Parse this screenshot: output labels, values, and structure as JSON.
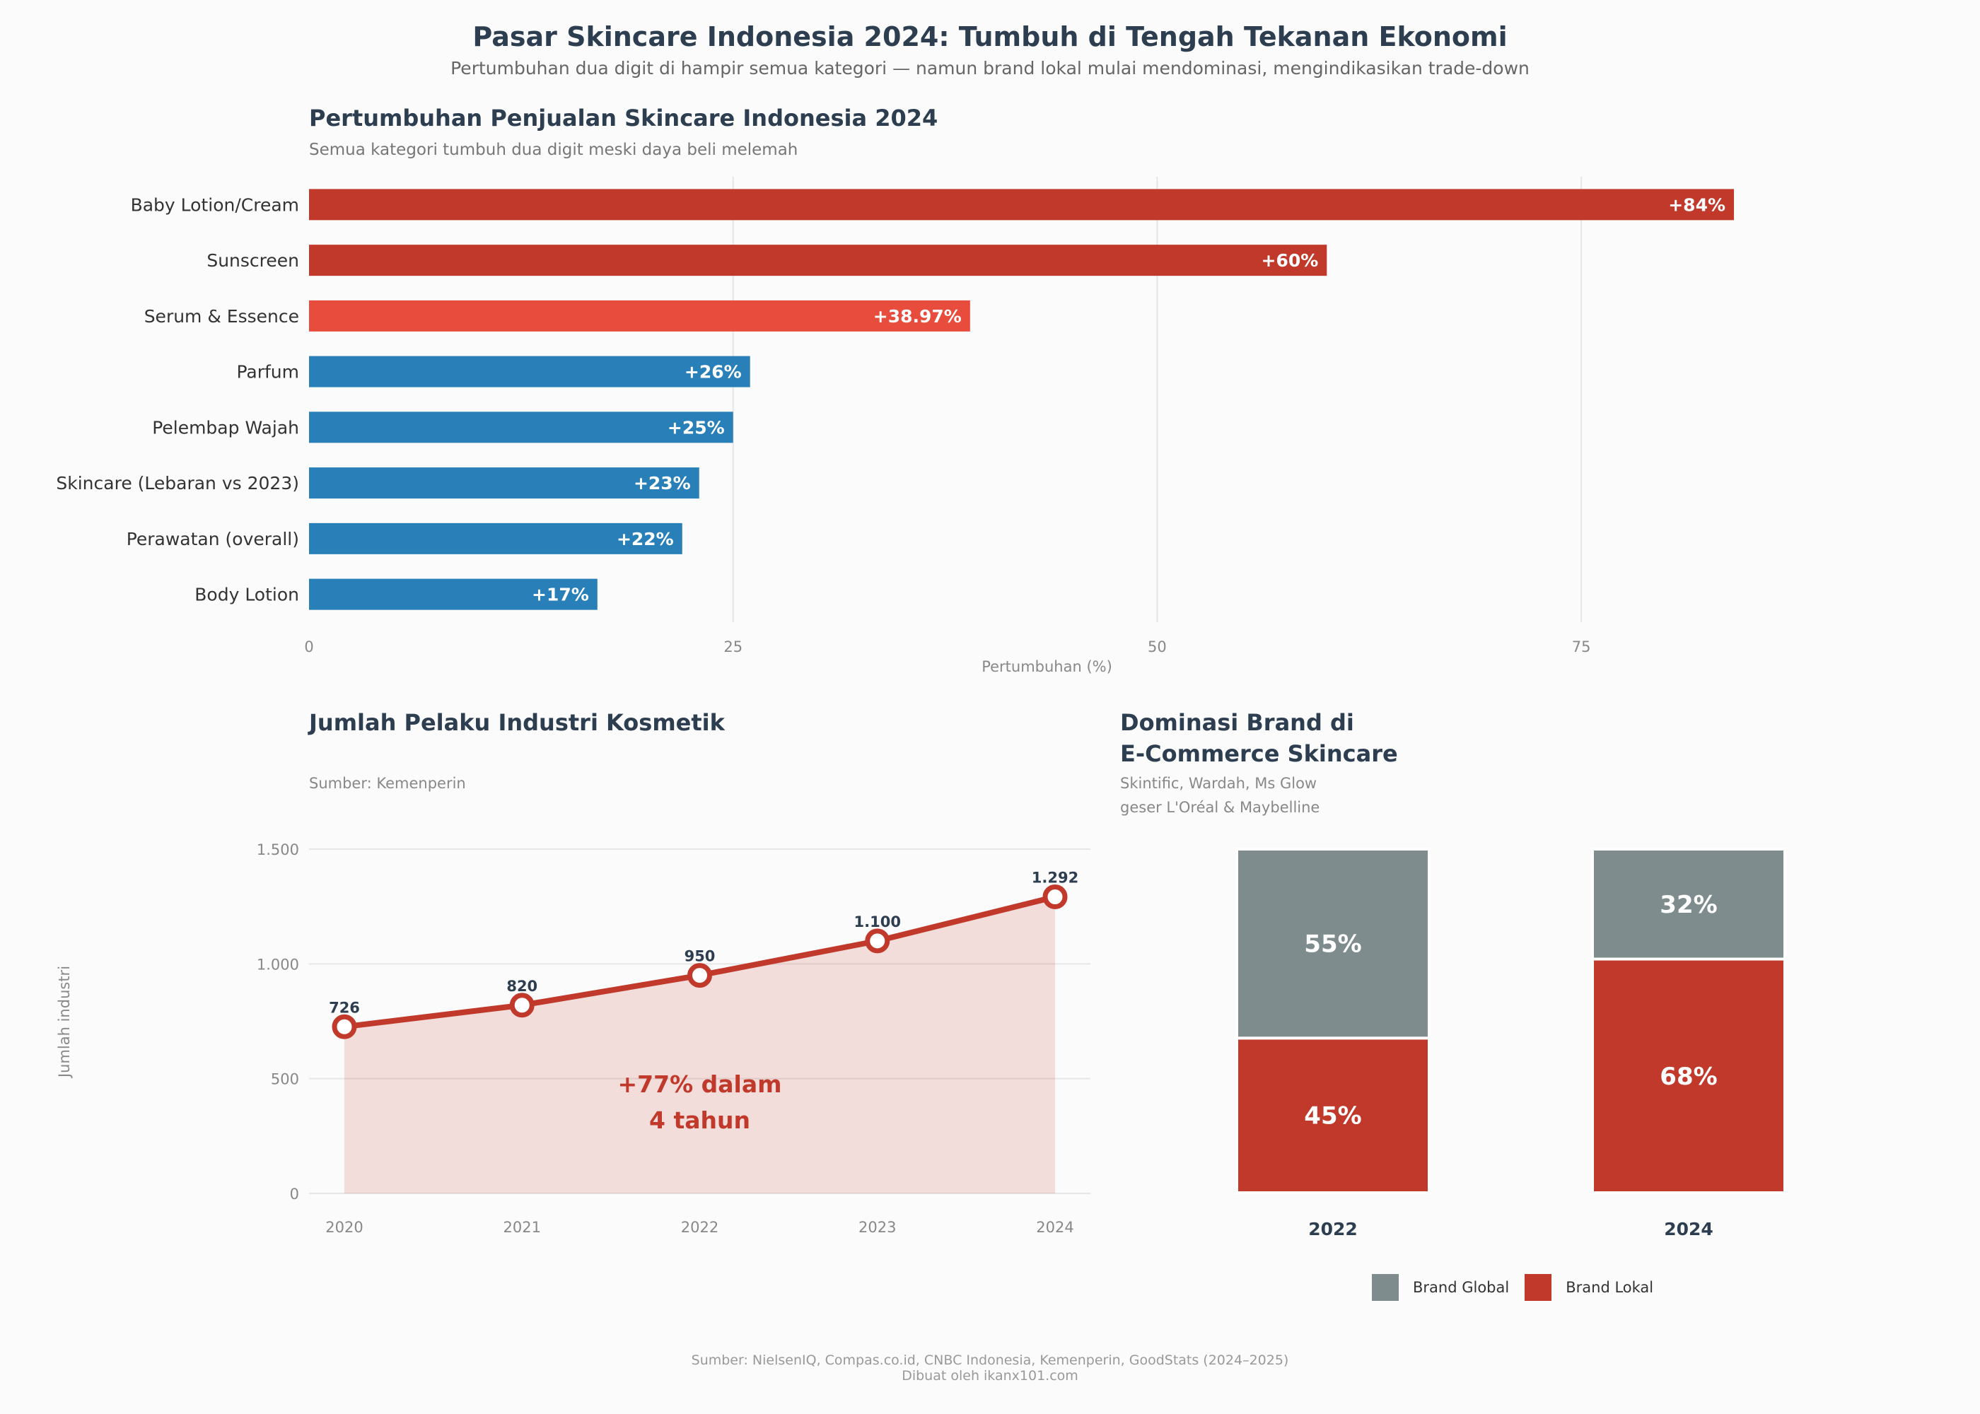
{
  "header": {
    "title": "Pasar Skincare Indonesia 2024: Tumbuh di Tengah Tekanan Ekonomi",
    "subtitle": "Pertumbuhan dua digit di hampir semua kategori — namun brand lokal mulai mendominasi, mengindikasikan trade-down"
  },
  "footer": {
    "source": "Sumber: NielsenIQ, Compas.co.id, CNBC Indonesia, Kemenperin, GoodStats (2024–2025)",
    "credit": "Dibuat oleh ikanx101.com"
  },
  "colors": {
    "dark_red": "#c0392b",
    "red": "#e74c3c",
    "blue": "#2980b9",
    "gray": "#7f8c8d"
  },
  "chart_data": [
    {
      "type": "bar",
      "orientation": "horizontal",
      "title": "Pertumbuhan Penjualan Skincare Indonesia 2024",
      "subtitle": "Semua kategori tumbuh dua digit meski daya beli melemah",
      "xlabel": "Pertumbuhan (%)",
      "xlim": [
        0,
        87
      ],
      "xticks": [
        0,
        25,
        50,
        75
      ],
      "categories": [
        "Baby Lotion/Cream",
        "Sunscreen",
        "Serum & Essence",
        "Parfum",
        "Pelembap Wajah",
        "Skincare (Lebaran vs 2023)",
        "Perawatan (overall)",
        "Body Lotion"
      ],
      "values": [
        84,
        60,
        38.97,
        26,
        25,
        23,
        22,
        17
      ],
      "labels": [
        "+84%",
        "+60%",
        "+38.97%",
        "+26%",
        "+25%",
        "+23%",
        "+22%",
        "+17%"
      ],
      "bar_colors": [
        "#c0392b",
        "#c0392b",
        "#e74c3c",
        "#2980b9",
        "#2980b9",
        "#2980b9",
        "#2980b9",
        "#2980b9"
      ],
      "grid": true
    },
    {
      "type": "line",
      "title": "Jumlah Pelaku Industri Kosmetik",
      "subtitle": "Sumber: Kemenperin",
      "ylabel": "Jumlah industri",
      "x": [
        "2020",
        "2021",
        "2022",
        "2023",
        "2024"
      ],
      "values": [
        726,
        820,
        950,
        1100,
        1292
      ],
      "labels": [
        "726",
        "820",
        "950",
        "1.100",
        "1.292"
      ],
      "ylim": [
        0,
        1550
      ],
      "yticks": [
        0,
        500,
        1000,
        1500
      ],
      "ytick_labels": [
        "0",
        "500",
        "1.000",
        "1.500"
      ],
      "annotation": [
        "+77% dalam",
        "4 tahun"
      ],
      "filled_area": true,
      "grid": true
    },
    {
      "type": "bar",
      "stacked": true,
      "title_lines": [
        "Dominasi Brand di",
        "E-Commerce Skincare"
      ],
      "subtitle_lines": [
        "Skintific, Wardah, Ms Glow",
        "geser L'Oréal & Maybelline"
      ],
      "categories": [
        "2022",
        "2024"
      ],
      "series": [
        {
          "name": "Brand Lokal",
          "color": "#c0392b",
          "values": [
            45,
            68
          ]
        },
        {
          "name": "Brand Global",
          "color": "#7f8c8d",
          "values": [
            55,
            32
          ]
        }
      ],
      "legend": {
        "placement": "bottom",
        "order": [
          "Brand Global",
          "Brand Lokal"
        ]
      }
    }
  ]
}
